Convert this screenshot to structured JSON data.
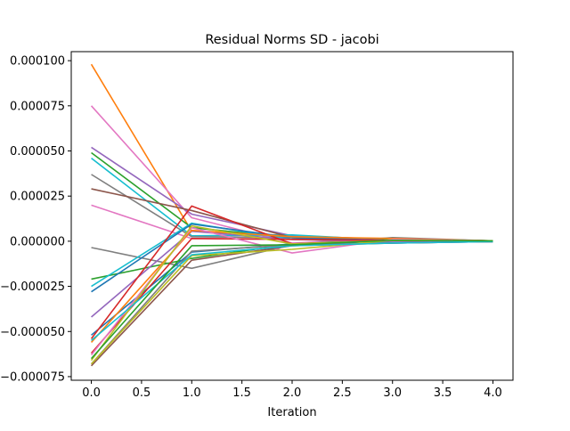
{
  "chart_data": {
    "type": "line",
    "title": "Residual Norms SD - jacobi",
    "xlabel": "Iteration",
    "ylabel": "",
    "xlim": [
      -0.2,
      4.2
    ],
    "ylim": [
      -7.7e-05,
      0.000105
    ],
    "x": [
      0,
      1,
      2,
      3,
      4
    ],
    "xticks": [
      0.0,
      0.5,
      1.0,
      1.5,
      2.0,
      2.5,
      3.0,
      3.5,
      4.0
    ],
    "xtick_labels": [
      "0.0",
      "0.5",
      "1.0",
      "1.5",
      "2.0",
      "2.5",
      "3.0",
      "3.5",
      "4.0"
    ],
    "yticks": [
      -7.5e-05,
      -5e-05,
      -2.5e-05,
      0.0,
      2.5e-05,
      5e-05,
      7.5e-05,
      0.0001
    ],
    "ytick_labels": [
      "−0.000075",
      "−0.000050",
      "−0.000025",
      "0.000000",
      "0.000025",
      "0.000050",
      "0.000075",
      "0.000100"
    ],
    "grid": false,
    "series": [
      {
        "color": "#ff7f0e",
        "values": [
          9.8e-05,
          5.5e-06,
          3e-06,
          5e-07,
          2e-07
        ]
      },
      {
        "color": "#e377c2",
        "values": [
          7.5e-05,
          1.3e-05,
          -1e-06,
          1.5e-06,
          2e-07
        ]
      },
      {
        "color": "#9467bd",
        "values": [
          5.2e-05,
          1.5e-05,
          3e-06,
          1e-06,
          2e-07
        ]
      },
      {
        "color": "#2ca02c",
        "values": [
          4.9e-05,
          7.5e-06,
          2e-06,
          1e-06,
          2e-07
        ]
      },
      {
        "color": "#17becf",
        "values": [
          4.6e-05,
          3e-06,
          3.5e-06,
          5e-07,
          2e-07
        ]
      },
      {
        "color": "#7f7f7f",
        "values": [
          3.7e-05,
          2.5e-06,
          2e-06,
          1.5e-06,
          2e-07
        ]
      },
      {
        "color": "#8c564b",
        "values": [
          2.9e-05,
          1.7e-05,
          2e-06,
          5e-07,
          2e-07
        ]
      },
      {
        "color": "#e377c2",
        "values": [
          2e-05,
          1.5e-06,
          1e-06,
          1e-06,
          2e-07
        ]
      },
      {
        "color": "#7f7f7f",
        "values": [
          -3.5e-06,
          -1.5e-05,
          -2e-06,
          2e-06,
          2e-07
        ]
      },
      {
        "color": "#2ca02c",
        "values": [
          -2.1e-05,
          -9.5e-06,
          -1.5e-06,
          1e-06,
          2e-07
        ]
      },
      {
        "color": "#17becf",
        "values": [
          -2.5e-05,
          1e-05,
          1e-06,
          5e-07,
          -2e-07
        ]
      },
      {
        "color": "#1f77b4",
        "values": [
          -2.8e-05,
          9.5e-06,
          2e-06,
          5e-07,
          -2e-07
        ]
      },
      {
        "color": "#9467bd",
        "values": [
          -4.2e-05,
          5.5e-06,
          1e-06,
          -5e-07,
          -2e-07
        ]
      },
      {
        "color": "#1f77b4",
        "values": [
          -5.2e-05,
          -6e-06,
          -1.5e-06,
          -1e-06,
          -2e-07
        ]
      },
      {
        "color": "#d62728",
        "values": [
          -5.4e-05,
          1.95e-05,
          -1.5e-06,
          5e-07,
          2e-07
        ]
      },
      {
        "color": "#ff7f0e",
        "values": [
          -5.6e-05,
          6e-06,
          2.5e-06,
          1.5e-06,
          2e-07
        ]
      },
      {
        "color": "#d62728",
        "values": [
          -6.2e-05,
          1.5e-06,
          1e-06,
          5e-07,
          2e-07
        ]
      },
      {
        "color": "#e377c2",
        "values": [
          -6.3e-05,
          7.5e-06,
          -6.5e-06,
          1e-06,
          2e-07
        ]
      },
      {
        "color": "#bcbd22",
        "values": [
          -6.6e-05,
          8.5e-06,
          -1.5e-06,
          5e-07,
          2e-07
        ]
      },
      {
        "color": "#7f7f7f",
        "values": [
          -6.8e-05,
          -5.5e-06,
          -2e-06,
          -1e-06,
          -2e-07
        ]
      },
      {
        "color": "#8c564b",
        "values": [
          -6.9e-05,
          -1.05e-05,
          -2.5e-06,
          -1e-06,
          -2e-07
        ]
      },
      {
        "color": "#bcbd22",
        "values": [
          -6.8e-05,
          -8e-06,
          -4.5e-06,
          5e-07,
          2e-07
        ]
      },
      {
        "color": "#17becf",
        "values": [
          -5.5e-05,
          -7.5e-06,
          -2.5e-06,
          -1e-06,
          -2e-07
        ]
      },
      {
        "color": "#2ca02c",
        "values": [
          -6.5e-05,
          -2.5e-06,
          -2e-06,
          5e-07,
          2e-07
        ]
      }
    ]
  }
}
